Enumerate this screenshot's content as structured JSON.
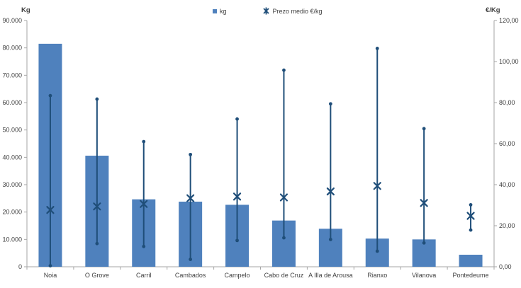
{
  "colors": {
    "bar": "#4f81bd",
    "hilo": "#1f4e79",
    "axis": "#a6a6a6",
    "text": "#404040"
  },
  "legend": {
    "kg_label": "kg",
    "prezo_label": "Prezo medio €/kg"
  },
  "chart_data": {
    "type": "bar",
    "subtype": "combo bar + high-low-mean price markers",
    "grid": false,
    "legend_position": "top-center",
    "categories": [
      "Noia",
      "O Grove",
      "Carril",
      "Cambados",
      "Campelo",
      "Cabo de Cruz",
      "A Illa de Arousa",
      "Rianxo",
      "Vilanova",
      "Pontedeume"
    ],
    "left_axis": {
      "title": "Kg",
      "min": 0,
      "max": 90000,
      "step": 10000,
      "tick_labels": [
        "90.000",
        "80.000",
        "70.000",
        "60.000",
        "50.000",
        "40.000",
        "30.000",
        "20.000",
        "10.000",
        "0"
      ]
    },
    "right_axis": {
      "title": "€/Kg",
      "min": 0,
      "max": 120,
      "step": 20,
      "tick_labels": [
        "120,00",
        "100,00",
        "80,00",
        "60,00",
        "40,00",
        "20,00",
        "0,00"
      ]
    },
    "series": [
      {
        "name": "kg",
        "type": "bar",
        "axis": "left",
        "values": [
          81500,
          40600,
          24650,
          23800,
          22650,
          16900,
          13900,
          10300,
          10000,
          4400
        ]
      },
      {
        "name": "Prezo medio €/kg",
        "type": "hilo-x",
        "axis": "right",
        "mean": [
          27.7,
          29.4,
          30.6,
          33.4,
          34.2,
          33.8,
          36.7,
          39.4,
          31.1,
          24.8
        ],
        "high": [
          83.4,
          81.7,
          61.0,
          54.7,
          72.0,
          95.8,
          79.4,
          106.4,
          67.3,
          30.2
        ],
        "low": [
          0.5,
          11.3,
          9.9,
          3.6,
          12.8,
          14.1,
          13.3,
          7.6,
          11.6,
          17.9
        ]
      }
    ]
  }
}
